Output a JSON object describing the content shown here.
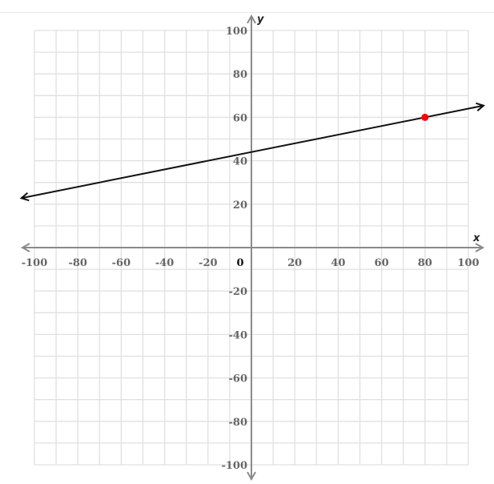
{
  "chart_data": {
    "type": "line",
    "title": "",
    "xlabel": "x",
    "ylabel": "y",
    "xlim": [
      -100,
      100
    ],
    "ylim": [
      -100,
      100
    ],
    "grid": true,
    "grid_step": 10,
    "x_ticks": [
      -100,
      -80,
      -60,
      -40,
      -20,
      0,
      20,
      40,
      60,
      80,
      100
    ],
    "y_ticks": [
      100,
      80,
      60,
      40,
      20,
      -20,
      -40,
      -60,
      -80,
      -100
    ],
    "x_tick_labels": [
      "-100",
      "-80",
      "-60",
      "-40",
      "-20",
      "0",
      "20",
      "40",
      "60",
      "80",
      "100"
    ],
    "y_tick_labels": [
      "100",
      "80",
      "60",
      "40",
      "20",
      "-20",
      "-40",
      "-60",
      "-80",
      "-100"
    ],
    "line": {
      "slope": 0.2,
      "intercept": 44,
      "color": "#111111",
      "arrows": "both"
    },
    "points": [
      {
        "x": 80,
        "y": 60,
        "color": "#ff0000"
      }
    ],
    "colors": {
      "grid": "#e0e0e0",
      "axis": "#8a8a8a"
    }
  }
}
